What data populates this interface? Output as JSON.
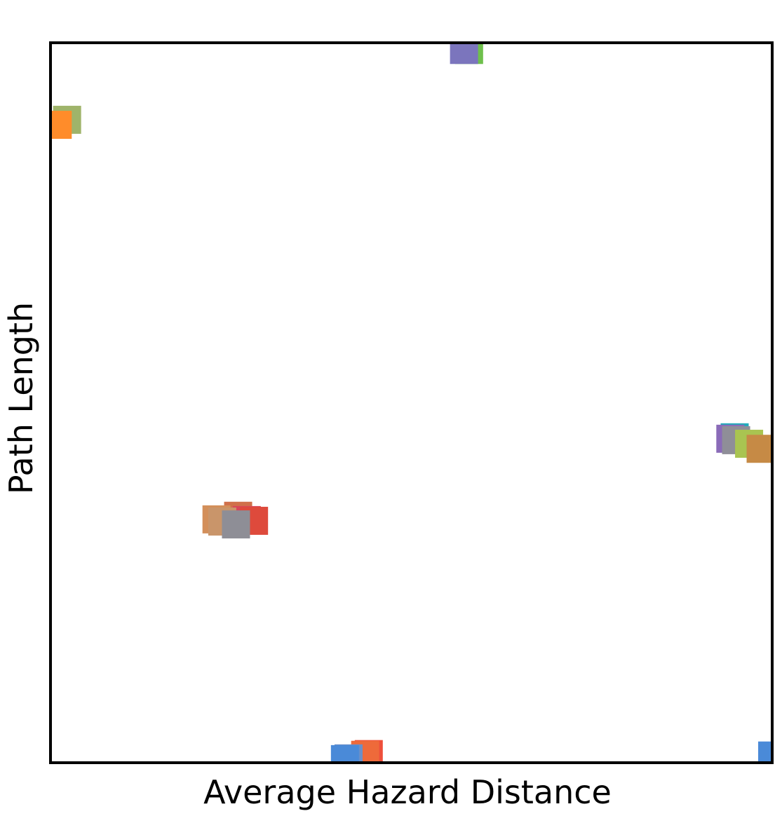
{
  "chart_data": {
    "type": "scatter",
    "title": "",
    "xlabel": "Average Hazard Distance",
    "ylabel": "Path Length",
    "xlim": [
      0,
      1
    ],
    "ylim": [
      0,
      1
    ],
    "x_ticks_shown": false,
    "y_ticks_shown": false,
    "grid": false,
    "legend": "none",
    "marker": "square",
    "points": [
      {
        "x": 0.023,
        "y": 0.893,
        "color": "#9fb46a"
      },
      {
        "x": 0.01,
        "y": 0.886,
        "color": "#ff8c2a"
      },
      {
        "x": 0.58,
        "y": 0.99,
        "color": "#6ec04c"
      },
      {
        "x": 0.573,
        "y": 0.99,
        "color": "#7b75bd"
      },
      {
        "x": 0.948,
        "y": 0.452,
        "color": "#22aabb"
      },
      {
        "x": 0.942,
        "y": 0.45,
        "color": "#8a6bb8"
      },
      {
        "x": 0.95,
        "y": 0.448,
        "color": "#8f8e98"
      },
      {
        "x": 0.968,
        "y": 0.443,
        "color": "#a9c451"
      },
      {
        "x": 0.984,
        "y": 0.436,
        "color": "#c68a45"
      },
      {
        "x": 0.26,
        "y": 0.343,
        "color": "#d0704a"
      },
      {
        "x": 0.272,
        "y": 0.337,
        "color": "#d9455a"
      },
      {
        "x": 0.282,
        "y": 0.336,
        "color": "#de4a3c"
      },
      {
        "x": 0.23,
        "y": 0.338,
        "color": "#d38f5a"
      },
      {
        "x": 0.238,
        "y": 0.335,
        "color": "#c9956a"
      },
      {
        "x": 0.257,
        "y": 0.331,
        "color": "#8e8e96"
      },
      {
        "x": 0.441,
        "y": 0.012,
        "color": "#ee4f3a"
      },
      {
        "x": 0.436,
        "y": 0.011,
        "color": "#ee6a3a"
      },
      {
        "x": 0.413,
        "y": 0.006,
        "color": "#6a8fc8"
      },
      {
        "x": 0.408,
        "y": 0.005,
        "color": "#4a8ad8"
      },
      {
        "x": 1.0,
        "y": 0.01,
        "color": "#4a8ad8"
      }
    ]
  }
}
